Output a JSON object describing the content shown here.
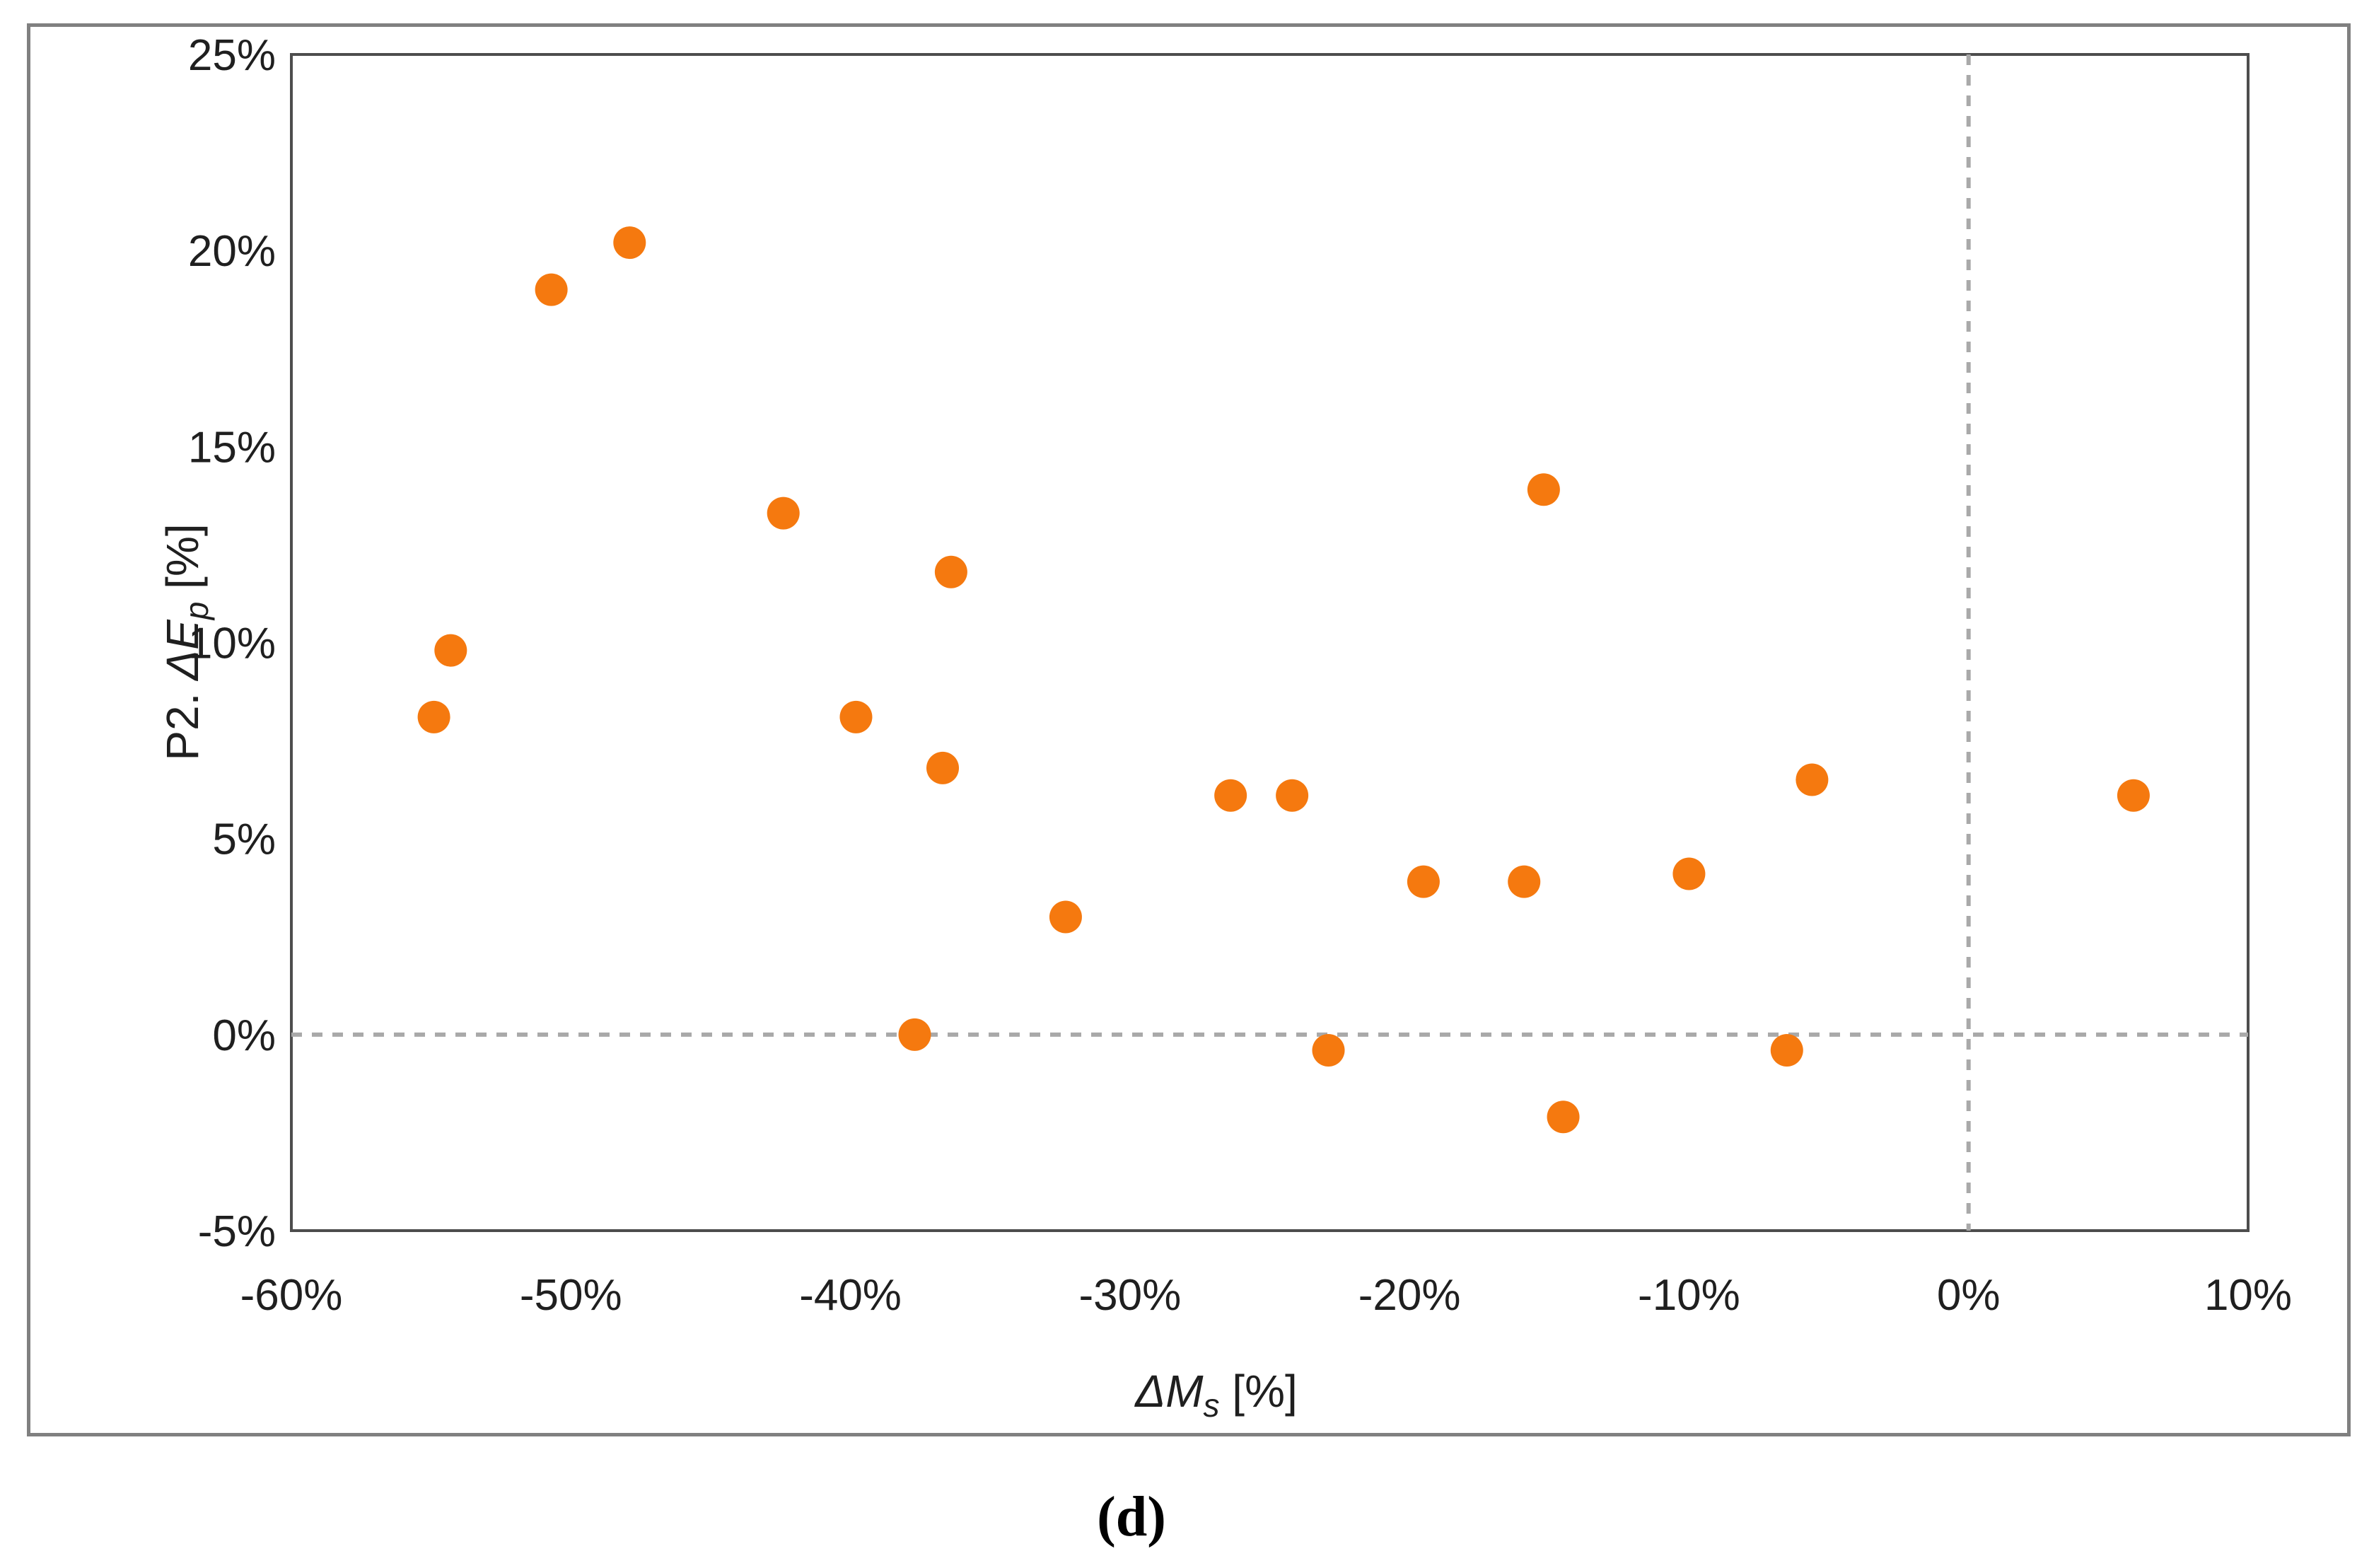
{
  "figure": {
    "caption": "(d)",
    "border_color": "#808080",
    "background": "#ffffff"
  },
  "chart_data": {
    "type": "scatter",
    "title": "",
    "xlabel": "ΔMₛ [%]",
    "ylabel": "P2. ΔEₚ [%]",
    "xlabel_parts": {
      "prefix": "",
      "italic": "ΔM",
      "sub": "s",
      "suffix": " [%]"
    },
    "ylabel_parts": {
      "prefix": "P2. ",
      "italic": "ΔE",
      "sub": "p",
      "suffix": " [%]"
    },
    "xlim": [
      -60,
      10
    ],
    "ylim": [
      -5,
      25
    ],
    "x_ticks": [
      -60,
      -50,
      -40,
      -30,
      -20,
      -10,
      0,
      10
    ],
    "x_tick_labels": [
      "-60%",
      "-50%",
      "-40%",
      "-30%",
      "-20%",
      "-10%",
      "0%",
      "10%"
    ],
    "y_ticks": [
      25,
      20,
      15,
      10,
      5,
      0,
      -5
    ],
    "y_tick_labels": [
      "25%",
      "20%",
      "15%",
      "10%",
      "5%",
      "0%",
      "-5%"
    ],
    "grid": "dotted zero lines only (x=0 and y=0)",
    "legend": "none",
    "marker_color": "#F5790F",
    "marker_radius_px": 23,
    "frame_color": "#4d4d4d",
    "gridline_color": "#a9a9a9",
    "text_color": "#1f1f1f",
    "points": [
      {
        "x": -54.9,
        "y": 8.1
      },
      {
        "x": -54.3,
        "y": 9.8
      },
      {
        "x": -50.7,
        "y": 19.0
      },
      {
        "x": -47.9,
        "y": 20.2
      },
      {
        "x": -42.4,
        "y": 13.3
      },
      {
        "x": -39.8,
        "y": 8.1
      },
      {
        "x": -37.7,
        "y": 0.0
      },
      {
        "x": -36.7,
        "y": 6.8
      },
      {
        "x": -36.4,
        "y": 11.8
      },
      {
        "x": -32.3,
        "y": 3.0
      },
      {
        "x": -26.4,
        "y": 6.1
      },
      {
        "x": -24.2,
        "y": 6.1
      },
      {
        "x": -22.9,
        "y": -0.4
      },
      {
        "x": -19.5,
        "y": 3.9
      },
      {
        "x": -15.9,
        "y": 3.9
      },
      {
        "x": -15.2,
        "y": 13.9
      },
      {
        "x": -14.5,
        "y": -2.1
      },
      {
        "x": -10.0,
        "y": 4.1
      },
      {
        "x": -6.5,
        "y": -0.4
      },
      {
        "x": -5.6,
        "y": 6.5
      },
      {
        "x": 5.9,
        "y": 6.1
      }
    ]
  }
}
